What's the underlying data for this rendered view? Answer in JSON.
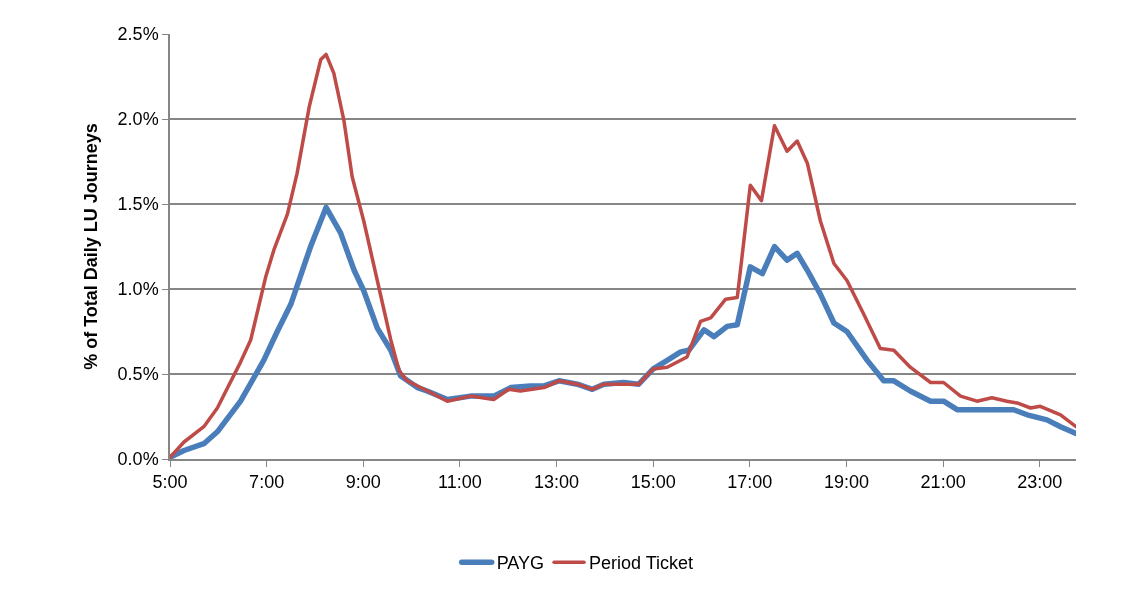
{
  "chart_data": {
    "type": "line",
    "ylabel": "% of Total Daily LU Journeys",
    "xlim": [
      5,
      23.75
    ],
    "xticks": [
      {
        "value": 5,
        "label": "5:00"
      },
      {
        "value": 7,
        "label": "7:00"
      },
      {
        "value": 9,
        "label": "9:00"
      },
      {
        "value": 11,
        "label": "11:00"
      },
      {
        "value": 13,
        "label": "13:00"
      },
      {
        "value": 15,
        "label": "15:00"
      },
      {
        "value": 17,
        "label": "17:00"
      },
      {
        "value": 19,
        "label": "19:00"
      },
      {
        "value": 21,
        "label": "21:00"
      },
      {
        "value": 23,
        "label": "23:00"
      }
    ],
    "ylim": [
      0,
      2.5
    ],
    "yticks": [
      {
        "value": 0,
        "label": "0.0%"
      },
      {
        "value": 0.5,
        "label": "0.5%"
      },
      {
        "value": 1,
        "label": "1.0%"
      },
      {
        "value": 1.5,
        "label": "1.5%"
      },
      {
        "value": 2,
        "label": "2.0%"
      },
      {
        "value": 2.5,
        "label": "2.5%"
      }
    ],
    "grid": "y",
    "legend": "bottom",
    "marker": "none",
    "line_style": "solid",
    "series": [
      {
        "name": "PAYG",
        "color": "#4a7ebb",
        "x": [
          5.0,
          5.29,
          5.7,
          5.98,
          6.46,
          6.94,
          7.22,
          7.5,
          7.91,
          8.23,
          8.53,
          8.81,
          9.01,
          9.29,
          9.57,
          9.77,
          10.12,
          10.32,
          10.74,
          11.22,
          11.7,
          12.05,
          12.46,
          12.74,
          13.05,
          13.43,
          13.74,
          13.98,
          14.39,
          14.7,
          15.0,
          15.29,
          15.57,
          15.74,
          16.05,
          16.26,
          16.53,
          16.74,
          17.01,
          17.26,
          17.51,
          17.77,
          17.98,
          18.19,
          18.46,
          18.74,
          19.01,
          19.43,
          19.77,
          19.98,
          20.32,
          20.74,
          21.01,
          21.29,
          21.91,
          22.46,
          22.74,
          23.15,
          23.43,
          23.75
        ],
        "values": [
          0.01,
          0.05,
          0.09,
          0.16,
          0.34,
          0.58,
          0.75,
          0.91,
          1.25,
          1.48,
          1.33,
          1.11,
          0.99,
          0.77,
          0.64,
          0.49,
          0.42,
          0.4,
          0.35,
          0.37,
          0.37,
          0.42,
          0.43,
          0.43,
          0.46,
          0.44,
          0.41,
          0.44,
          0.45,
          0.44,
          0.53,
          0.58,
          0.63,
          0.64,
          0.76,
          0.72,
          0.78,
          0.79,
          1.13,
          1.09,
          1.25,
          1.17,
          1.21,
          1.11,
          0.97,
          0.8,
          0.75,
          0.58,
          0.46,
          0.46,
          0.4,
          0.34,
          0.34,
          0.29,
          0.29,
          0.29,
          0.26,
          0.23,
          0.19,
          0.15
        ]
      },
      {
        "name": "Period Ticket",
        "color": "#be4b48",
        "x": [
          5.0,
          5.29,
          5.7,
          5.98,
          6.46,
          6.67,
          6.98,
          7.15,
          7.43,
          7.63,
          7.88,
          8.12,
          8.23,
          8.39,
          8.6,
          8.77,
          9.01,
          9.29,
          9.57,
          9.74,
          9.91,
          10.26,
          10.74,
          11.22,
          11.7,
          12.01,
          12.25,
          12.74,
          13.05,
          13.43,
          13.74,
          13.98,
          14.39,
          14.7,
          15.0,
          15.29,
          15.7,
          15.98,
          16.19,
          16.5,
          16.74,
          17.01,
          17.24,
          17.51,
          17.77,
          17.98,
          18.19,
          18.46,
          18.74,
          19.01,
          19.36,
          19.7,
          19.98,
          20.32,
          20.74,
          21.01,
          21.36,
          21.7,
          22.01,
          22.32,
          22.53,
          22.81,
          23.01,
          23.43,
          23.75
        ],
        "values": [
          0.01,
          0.1,
          0.19,
          0.3,
          0.57,
          0.7,
          1.07,
          1.23,
          1.44,
          1.68,
          2.07,
          2.35,
          2.38,
          2.27,
          1.99,
          1.66,
          1.4,
          1.05,
          0.7,
          0.52,
          0.46,
          0.41,
          0.34,
          0.37,
          0.35,
          0.41,
          0.4,
          0.42,
          0.46,
          0.44,
          0.41,
          0.44,
          0.44,
          0.44,
          0.53,
          0.54,
          0.6,
          0.81,
          0.83,
          0.94,
          0.95,
          1.61,
          1.52,
          1.96,
          1.81,
          1.87,
          1.74,
          1.4,
          1.15,
          1.05,
          0.85,
          0.65,
          0.64,
          0.54,
          0.45,
          0.45,
          0.37,
          0.34,
          0.36,
          0.34,
          0.33,
          0.3,
          0.31,
          0.26,
          0.19
        ]
      }
    ]
  }
}
